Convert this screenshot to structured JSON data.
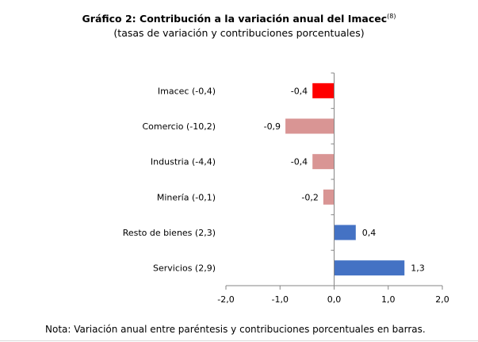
{
  "header": {
    "title": "Gráfico 2: Contribución a la variación anual del Imacec",
    "title_superscript": "(8)",
    "subtitle": "(tasas de variación y contribuciones porcentuales)"
  },
  "footer": {
    "note": "Nota: Variación anual entre paréntesis y contribuciones porcentuales en barras."
  },
  "chart_data": {
    "type": "bar",
    "orientation": "horizontal",
    "title": "Gráfico 2: Contribución a la variación anual del Imacec",
    "subtitle": "(tasas de variación y contribuciones porcentuales)",
    "categories": [
      "Imacec (-0,4)",
      "Comercio (-10,2)",
      "Industria (-4,4)",
      "Minería (-0,1)",
      "Resto de bienes (2,3)",
      "Servicios (2,9)"
    ],
    "values": [
      -0.4,
      -0.9,
      -0.4,
      -0.2,
      0.4,
      1.3
    ],
    "value_labels": [
      "-0,4",
      "-0,9",
      "-0,4",
      "-0,2",
      "0,4",
      "1,3"
    ],
    "colors": [
      "#ff0000",
      "#d99594",
      "#d99594",
      "#d99594",
      "#4472c4",
      "#4472c4"
    ],
    "xlim": [
      -2.0,
      2.0
    ],
    "xticks": [
      -2.0,
      -1.0,
      0.0,
      1.0,
      2.0
    ],
    "xtick_labels": [
      "-2,0",
      "-1,0",
      "0,0",
      "1,0",
      "2,0"
    ],
    "xlabel": "",
    "ylabel": "",
    "grid": false,
    "legend": "none"
  }
}
